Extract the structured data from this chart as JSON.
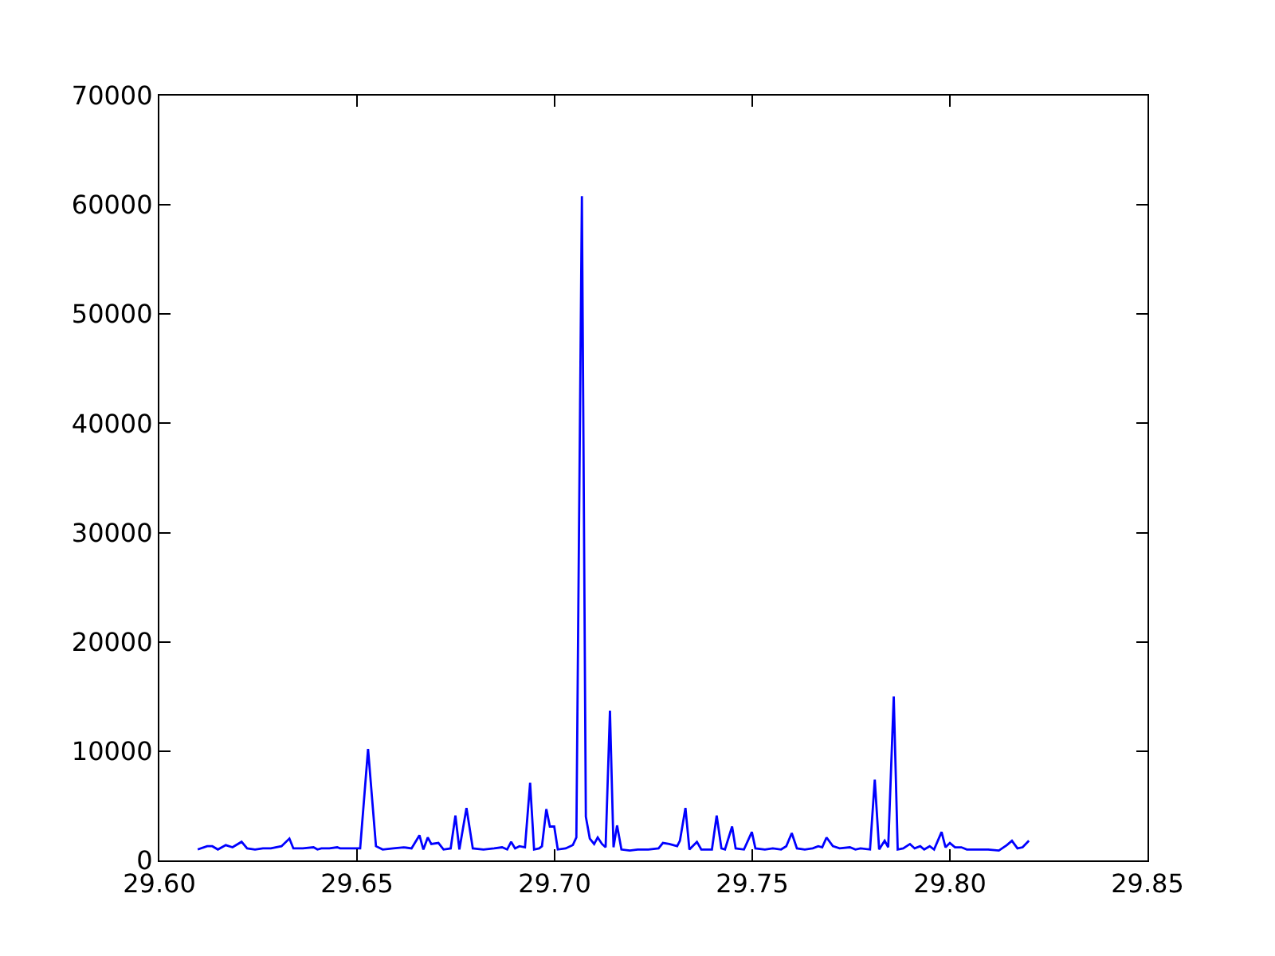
{
  "chart_data": {
    "type": "line",
    "color": "#0000ff",
    "line_style": "solid",
    "x": [
      29.6097,
      29.6121,
      29.6134,
      29.6148,
      29.6168,
      29.6185,
      29.6208,
      29.6222,
      29.6242,
      29.6262,
      29.6282,
      29.6309,
      29.6329,
      29.6339,
      29.6363,
      29.639,
      29.64,
      29.641,
      29.643,
      29.645,
      29.6457,
      29.6484,
      29.6508,
      29.6528,
      29.6548,
      29.6565,
      29.6592,
      29.6618,
      29.6638,
      29.6658,
      29.6668,
      29.6679,
      29.6688,
      29.6706,
      29.6719,
      29.6737,
      29.6749,
      29.6759,
      29.6777,
      29.6793,
      29.682,
      29.6847,
      29.6867,
      29.688,
      29.689,
      29.69,
      29.6911,
      29.6925,
      29.6938,
      29.6948,
      29.6961,
      29.6968,
      29.6979,
      29.6988,
      29.6999,
      29.7008,
      29.7028,
      29.7046,
      29.7055,
      29.7069,
      29.7079,
      29.7089,
      29.71,
      29.7109,
      29.712,
      29.7129,
      29.714,
      29.7149,
      29.7158,
      29.7169,
      29.719,
      29.721,
      29.7237,
      29.7263,
      29.7274,
      29.729,
      29.731,
      29.7317,
      29.7331,
      29.7341,
      29.736,
      29.7371,
      29.7398,
      29.741,
      29.7422,
      29.7431,
      29.7449,
      29.7458,
      29.7479,
      29.7499,
      29.7508,
      29.7532,
      29.7552,
      29.7573,
      29.7586,
      29.76,
      29.7613,
      29.7633,
      29.7653,
      29.7667,
      29.7677,
      29.7688,
      29.7704,
      29.7721,
      29.7747,
      29.7761,
      29.7774,
      29.7798,
      29.781,
      29.7821,
      29.7835,
      29.7844,
      29.7858,
      29.7868,
      29.7882,
      29.7899,
      29.7911,
      29.7925,
      29.7935,
      29.7949,
      29.796,
      29.7979,
      29.7989,
      29.8,
      29.8013,
      29.8029,
      29.8043,
      29.807,
      29.8097,
      29.8124,
      29.8144,
      29.8157,
      29.8171,
      29.8184,
      29.82
    ],
    "values": [
      1000,
      1300,
      1300,
      1000,
      1400,
      1200,
      1700,
      1100,
      1000,
      1100,
      1100,
      1300,
      2000,
      1100,
      1100,
      1200,
      1000,
      1100,
      1100,
      1200,
      1100,
      1100,
      1100,
      10200,
      1300,
      1000,
      1100,
      1200,
      1100,
      2300,
      1000,
      2100,
      1500,
      1600,
      1000,
      1100,
      4100,
      1000,
      4800,
      1100,
      1000,
      1100,
      1200,
      1000,
      1700,
      1100,
      1300,
      1200,
      7100,
      1000,
      1100,
      1300,
      4700,
      3100,
      3100,
      1000,
      1100,
      1400,
      2100,
      60800,
      4000,
      2000,
      1500,
      2100,
      1500,
      1200,
      13700,
      1200,
      3200,
      1000,
      900,
      1000,
      1000,
      1100,
      1600,
      1500,
      1300,
      1800,
      4800,
      1000,
      1700,
      1000,
      1000,
      4100,
      1100,
      1000,
      3100,
      1100,
      1000,
      2600,
      1100,
      1000,
      1100,
      1000,
      1300,
      2500,
      1100,
      1000,
      1100,
      1300,
      1200,
      2100,
      1300,
      1100,
      1200,
      1000,
      1100,
      1000,
      7400,
      1000,
      1800,
      1200,
      15000,
      1000,
      1100,
      1500,
      1100,
      1300,
      1000,
      1300,
      1000,
      2600,
      1200,
      1600,
      1200,
      1200,
      1000,
      1000,
      1000,
      900,
      1400,
      1800,
      1100,
      1200,
      1800
    ],
    "xlim": [
      29.6,
      29.85
    ],
    "xticks": [
      {
        "value": 29.6,
        "label": "29.60"
      },
      {
        "value": 29.65,
        "label": "29.65"
      },
      {
        "value": 29.7,
        "label": "29.70"
      },
      {
        "value": 29.75,
        "label": "29.75"
      },
      {
        "value": 29.8,
        "label": "29.80"
      },
      {
        "value": 29.85,
        "label": "29.85"
      }
    ],
    "ylim": [
      0,
      70000
    ],
    "yticks": [
      0,
      10000,
      20000,
      30000,
      40000,
      50000,
      60000,
      70000
    ]
  }
}
